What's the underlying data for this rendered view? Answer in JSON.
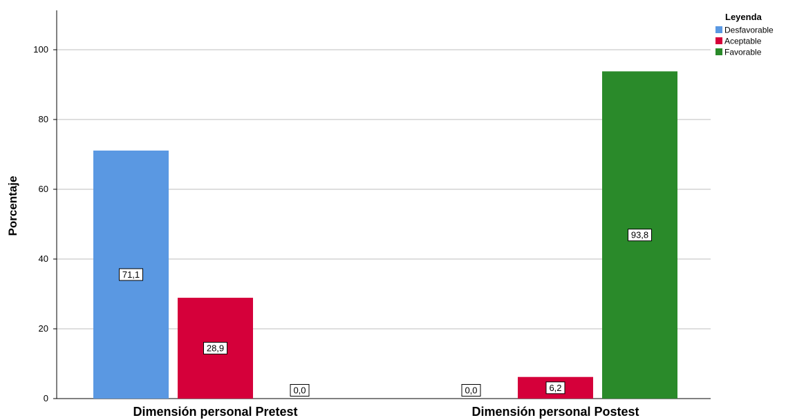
{
  "chart_data": {
    "type": "bar",
    "categories": [
      "Dimensión personal Pretest",
      "Dimensión personal Postest"
    ],
    "series": [
      {
        "name": "Desfavorable",
        "color": "#5a98e2",
        "values": [
          71.1,
          0.0
        ],
        "labels": [
          "71,1",
          "0,0"
        ]
      },
      {
        "name": "Aceptable",
        "color": "#d5003a",
        "values": [
          28.9,
          6.2
        ],
        "labels": [
          "28,9",
          "6,2"
        ]
      },
      {
        "name": "Favorable",
        "color": "#2a8a2a",
        "values": [
          0.0,
          93.8
        ],
        "labels": [
          "0,0",
          "93,8"
        ]
      }
    ],
    "title": "",
    "xlabel": "",
    "ylabel": "Porcentaje",
    "ylim": [
      0,
      110
    ],
    "yticks": [
      0,
      20,
      40,
      60,
      80,
      100
    ],
    "grid": true,
    "legend": {
      "title": "Leyenda",
      "position": "top-right"
    }
  }
}
